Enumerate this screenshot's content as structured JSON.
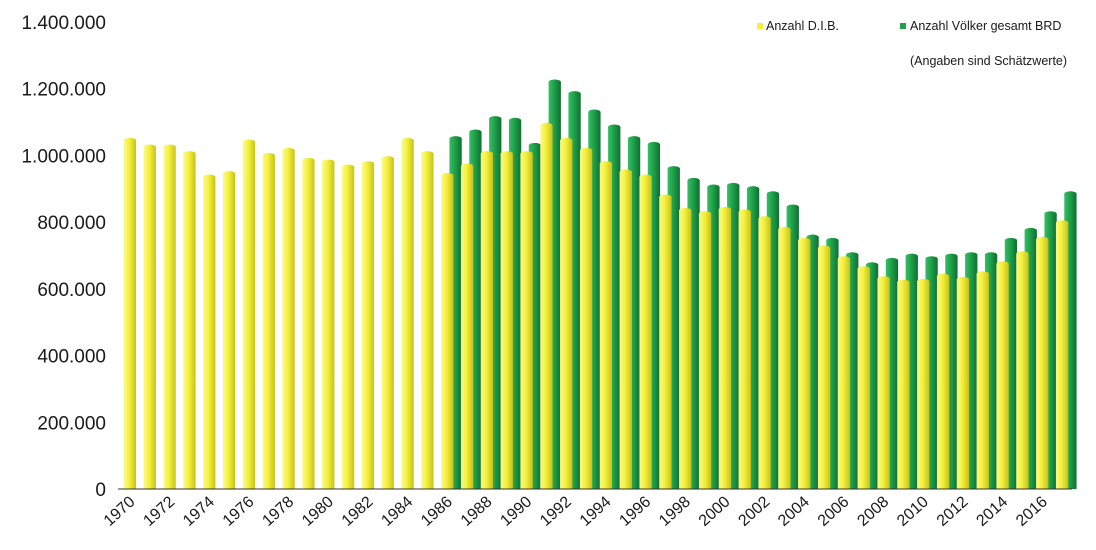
{
  "chart_data": {
    "type": "bar",
    "ylim": [
      0,
      1400000
    ],
    "y_ticks": [
      0,
      200000,
      400000,
      600000,
      800000,
      1000000,
      1200000,
      1400000
    ],
    "y_tick_labels": [
      "0",
      "200.000",
      "400.000",
      "600.000",
      "800.000",
      "1.000.000",
      "1.200.000",
      "1.400.000"
    ],
    "categories": [
      "1970",
      "1971",
      "1972",
      "1973",
      "1974",
      "1975",
      "1976",
      "1977",
      "1978",
      "1979",
      "1980",
      "1981",
      "1982",
      "1983",
      "1984",
      "1985",
      "1986",
      "1987",
      "1988",
      "1989",
      "1990",
      "1991",
      "1992",
      "1993",
      "1994",
      "1995",
      "1996",
      "1997",
      "1998",
      "1999",
      "2000",
      "2001",
      "2002",
      "2003",
      "2004",
      "2005",
      "2006",
      "2007",
      "2008",
      "2009",
      "2010",
      "2011",
      "2012",
      "2013",
      "2014",
      "2015",
      "2016",
      "2017"
    ],
    "x_tick_labels": [
      "1970",
      "1972",
      "1974",
      "1976",
      "1978",
      "1980",
      "1982",
      "1984",
      "1986",
      "1988",
      "1990",
      "1992",
      "1994",
      "1996",
      "1998",
      "2000",
      "2002",
      "2004",
      "2006",
      "2008",
      "2010",
      "2012",
      "2014",
      "2016"
    ],
    "series": [
      {
        "name": "Anzahl D.I.B.",
        "color": "#f4f03c",
        "values": [
          1045000,
          1025000,
          1025000,
          1005000,
          935000,
          945000,
          1040000,
          1000000,
          1015000,
          985000,
          980000,
          965000,
          975000,
          990000,
          1045000,
          1005000,
          940000,
          968000,
          1005000,
          1005000,
          1005000,
          1090000,
          1045000,
          1015000,
          975000,
          950000,
          935000,
          875000,
          835000,
          825000,
          838000,
          830000,
          810000,
          778000,
          745000,
          722000,
          690000,
          660000,
          630000,
          620000,
          622000,
          638000,
          628000,
          645000,
          675000,
          705000,
          748000,
          798000
        ]
      },
      {
        "name": "Anzahl Völker gesamt BRD",
        "color": "#1fa04a",
        "values": [
          null,
          null,
          null,
          null,
          null,
          null,
          null,
          null,
          null,
          null,
          null,
          null,
          null,
          null,
          null,
          null,
          1050000,
          1070000,
          1110000,
          1105000,
          1030000,
          1220000,
          1185000,
          1130000,
          1085000,
          1050000,
          1033000,
          960000,
          925000,
          905000,
          910000,
          900000,
          885000,
          845000,
          755000,
          745000,
          702000,
          672000,
          685000,
          698000,
          690000,
          698000,
          702000,
          702000,
          745000,
          775000,
          825000,
          885000
        ]
      }
    ],
    "legend_note": "(Angaben sind Schätzwerte)",
    "legend_position": "top-right",
    "grid": false
  }
}
